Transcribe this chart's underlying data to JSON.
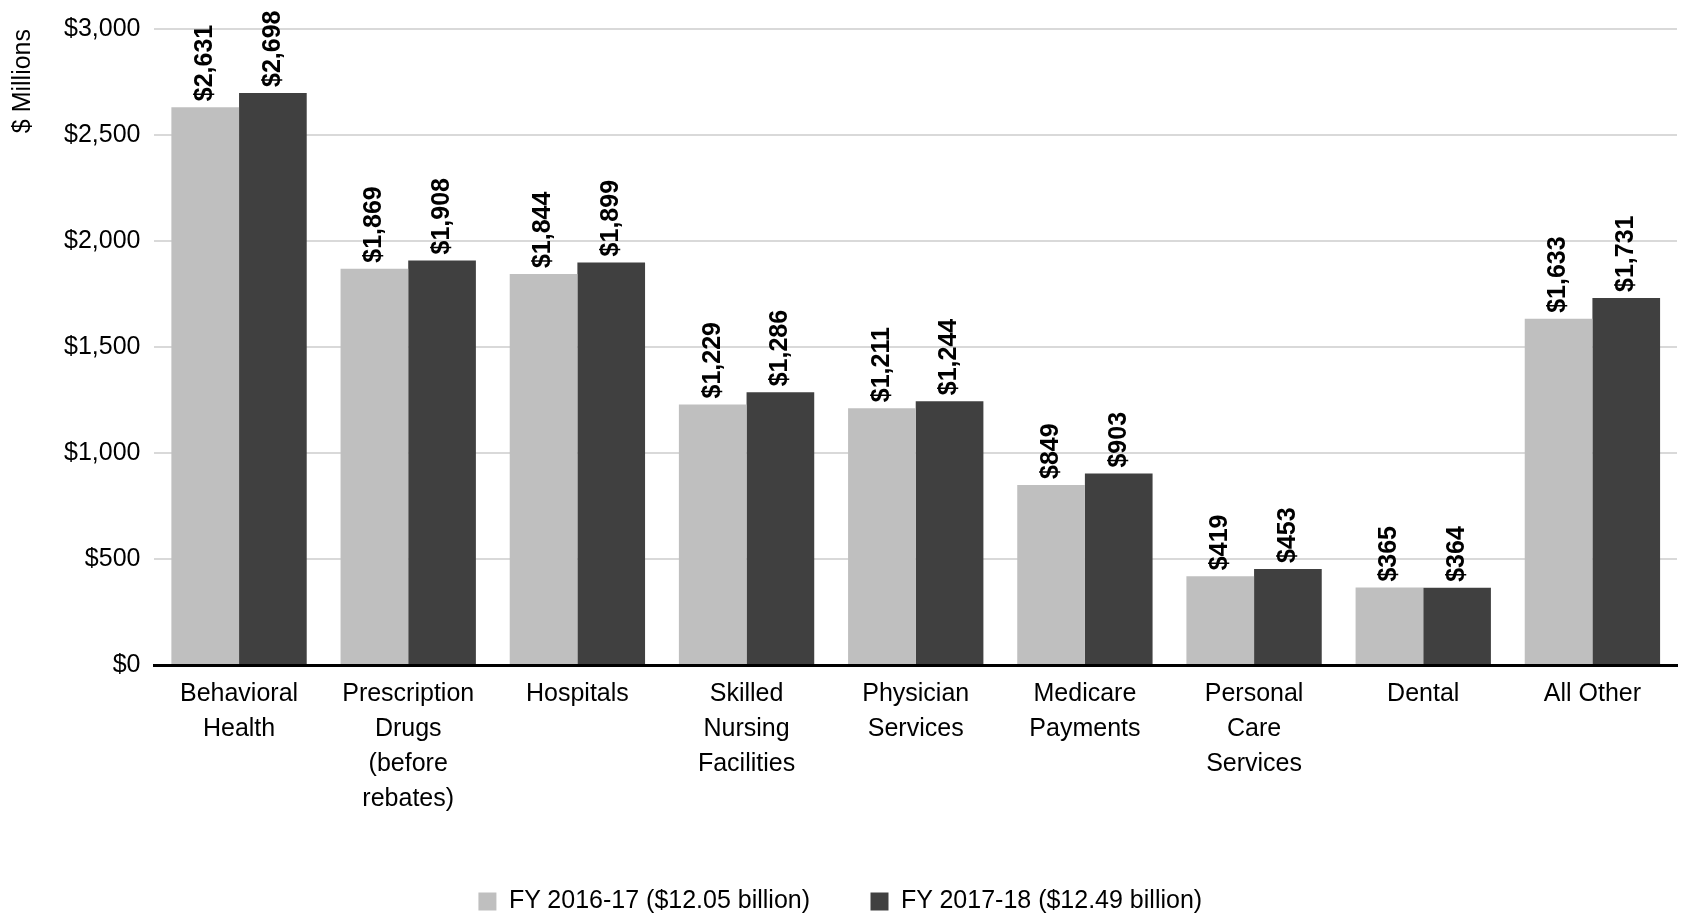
{
  "chart_data": {
    "type": "bar",
    "ylabel": "$ Millions",
    "categories": [
      "Behavioral Health",
      "Prescription Drugs (before rebates)",
      "Hospitals",
      "Skilled Nursing Facilities",
      "Physician Services",
      "Medicare Payments",
      "Personal Care Services",
      "Dental",
      "All Other"
    ],
    "series": [
      {
        "name": "FY 2016-17 ($12.05 billion)",
        "color": "#bfbfbf",
        "values": [
          2631,
          1869,
          1844,
          1229,
          1211,
          849,
          419,
          365,
          1633
        ],
        "value_labels": [
          "$2,631",
          "$1,869",
          "$1,844",
          "$1,229",
          "$1,211",
          "$849",
          "$419",
          "$365",
          "$1,633"
        ]
      },
      {
        "name": "FY 2017-18 ($12.49 billion)",
        "color": "#404040",
        "values": [
          2698,
          1908,
          1899,
          1286,
          1244,
          903,
          453,
          364,
          1731
        ],
        "value_labels": [
          "$2,698",
          "$1,908",
          "$1,899",
          "$1,286",
          "$1,244",
          "$903",
          "$453",
          "$364",
          "$1,731"
        ]
      }
    ],
    "ylim": [
      0,
      3000
    ],
    "yticks": [
      {
        "value": 0,
        "label": "$0"
      },
      {
        "value": 500,
        "label": "$500"
      },
      {
        "value": 1000,
        "label": "$1,000"
      },
      {
        "value": 1500,
        "label": "$1,500"
      },
      {
        "value": 2000,
        "label": "$2,000"
      },
      {
        "value": 2500,
        "label": "$2,500"
      },
      {
        "value": 3000,
        "label": "$3,000"
      }
    ],
    "grid": "y",
    "legend": "bottom"
  }
}
